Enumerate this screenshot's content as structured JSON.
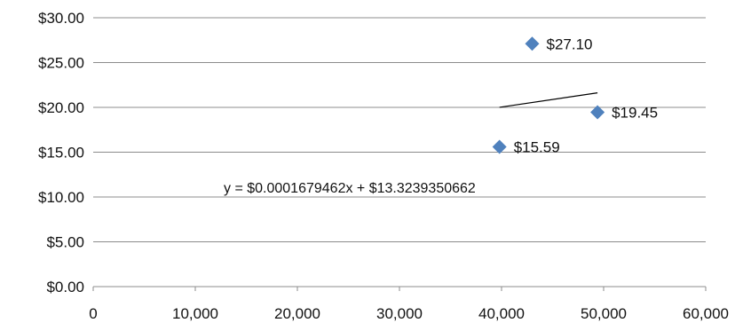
{
  "chart_data": {
    "type": "scatter",
    "title": "",
    "xlabel": "",
    "ylabel": "",
    "xlim": [
      0,
      60000
    ],
    "ylim": [
      0,
      30
    ],
    "x_ticks": [
      0,
      10000,
      20000,
      30000,
      40000,
      50000,
      60000
    ],
    "x_tick_labels": [
      "0",
      "10,000",
      "20,000",
      "30,000",
      "40,000",
      "50,000",
      "60,000"
    ],
    "y_ticks": [
      0,
      5,
      10,
      15,
      20,
      25,
      30
    ],
    "y_tick_labels": [
      "$0.00",
      "$5.00",
      "$10.00",
      "$15.00",
      "$20.00",
      "$25.00",
      "$30.00"
    ],
    "grid": "horizontal",
    "legend": "none",
    "series": [
      {
        "color": "#4F81BD",
        "marker": "diamond",
        "points": [
          {
            "x": 43000,
            "y": 27.1,
            "label": "$27.10"
          },
          {
            "x": 49400,
            "y": 19.45,
            "label": "$19.45"
          },
          {
            "x": 39800,
            "y": 15.59,
            "label": "$15.59"
          }
        ]
      }
    ],
    "trendline": {
      "type": "linear",
      "color": "#000000",
      "x_range": [
        39800,
        49400
      ],
      "slope": 0.0001679462,
      "intercept": 13.3239350662,
      "equation": "y = $0.0001679462x + $13.3239350662"
    }
  }
}
